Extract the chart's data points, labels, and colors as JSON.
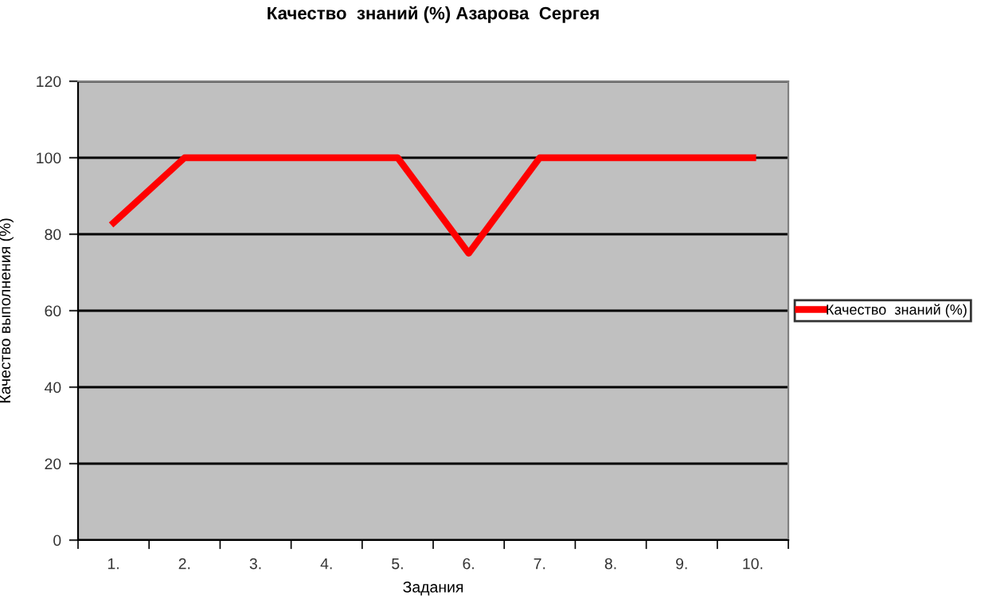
{
  "chart_data": {
    "type": "line",
    "title": "Качество  знаний (%) Азарова  Сергея",
    "xlabel": "Задания",
    "ylabel": "Качество выполнения (%)",
    "categories": [
      "1.",
      "2.",
      "3.",
      "4.",
      "5.",
      "6.",
      "7.",
      "8.",
      "9.",
      "10."
    ],
    "series": [
      {
        "name": "Качество  знаний (%)",
        "color": "#ff0000",
        "values": [
          83,
          100,
          100,
          100,
          100,
          75,
          100,
          100,
          100,
          100
        ]
      }
    ],
    "ylim": [
      0,
      120
    ],
    "yticks": [
      0,
      20,
      40,
      60,
      80,
      100,
      120
    ],
    "grid": "y",
    "legend": "right",
    "marker": "none",
    "line_style": "solid"
  }
}
